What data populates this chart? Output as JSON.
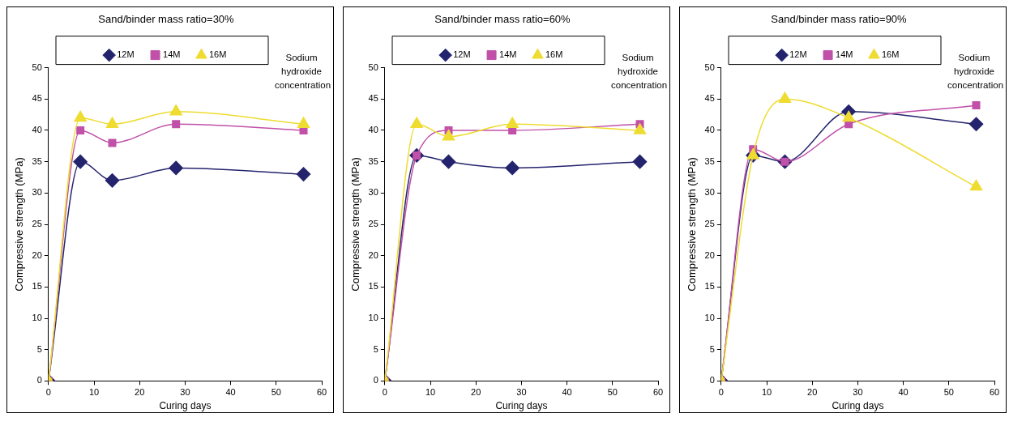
{
  "chart_data": [
    {
      "type": "line",
      "title": "Sand/binder mass ratio=30%",
      "xlabel": "Curing days",
      "ylabel": "Compressive strength (MPa)",
      "legend_title": "Sodium hydroxide concentration",
      "legend": "top",
      "grid": false,
      "xlim": [
        0,
        60
      ],
      "xticks": [
        0,
        10,
        20,
        30,
        40,
        50,
        60
      ],
      "ylim": [
        0,
        50
      ],
      "yticks": [
        0,
        5,
        10,
        15,
        20,
        25,
        30,
        35,
        40,
        45,
        50
      ],
      "x": [
        0,
        7,
        14,
        28,
        56
      ],
      "series": [
        {
          "name": "12M",
          "color": "#24246e",
          "marker": "diamond",
          "values": [
            0,
            35,
            32,
            34,
            33
          ]
        },
        {
          "name": "14M",
          "color": "#c050a8",
          "marker": "square",
          "values": [
            0,
            40,
            38,
            41,
            40
          ]
        },
        {
          "name": "16M",
          "color": "#eedc30",
          "marker": "triangle",
          "values": [
            0,
            42,
            41,
            43,
            41
          ]
        }
      ]
    },
    {
      "type": "line",
      "title": "Sand/binder mass ratio=60%",
      "xlabel": "Curing days",
      "ylabel": "Compressive strength (MPa)",
      "legend_title": "Sodium hydroxide concentration",
      "legend": "top",
      "grid": false,
      "xlim": [
        0,
        60
      ],
      "xticks": [
        0,
        10,
        20,
        30,
        40,
        50,
        60
      ],
      "ylim": [
        0,
        50
      ],
      "yticks": [
        0,
        5,
        10,
        15,
        20,
        25,
        30,
        35,
        40,
        45,
        50
      ],
      "x": [
        0,
        7,
        14,
        28,
        56
      ],
      "series": [
        {
          "name": "12M",
          "color": "#24246e",
          "marker": "diamond",
          "values": [
            0,
            36,
            35,
            34,
            35
          ]
        },
        {
          "name": "14M",
          "color": "#c050a8",
          "marker": "square",
          "values": [
            0,
            36,
            40,
            40,
            41
          ]
        },
        {
          "name": "16M",
          "color": "#eedc30",
          "marker": "triangle",
          "values": [
            0,
            41,
            39,
            41,
            40
          ]
        }
      ]
    },
    {
      "type": "line",
      "title": "Sand/binder mass ratio=90%",
      "xlabel": "Curing days",
      "ylabel": "Compressive strength (MPa)",
      "legend_title": "Sodium hydroxide concentration",
      "legend": "top",
      "grid": false,
      "xlim": [
        0,
        60
      ],
      "xticks": [
        0,
        10,
        20,
        30,
        40,
        50,
        60
      ],
      "ylim": [
        0,
        50
      ],
      "yticks": [
        0,
        5,
        10,
        15,
        20,
        25,
        30,
        35,
        40,
        45,
        50
      ],
      "x": [
        0,
        7,
        14,
        28,
        56
      ],
      "series": [
        {
          "name": "12M",
          "color": "#24246e",
          "marker": "diamond",
          "values": [
            0,
            36,
            35,
            43,
            41
          ]
        },
        {
          "name": "14M",
          "color": "#c050a8",
          "marker": "square",
          "values": [
            0,
            37,
            35,
            41,
            44
          ]
        },
        {
          "name": "16M",
          "color": "#eedc30",
          "marker": "triangle",
          "values": [
            0,
            36,
            45,
            42,
            31
          ]
        }
      ]
    }
  ]
}
